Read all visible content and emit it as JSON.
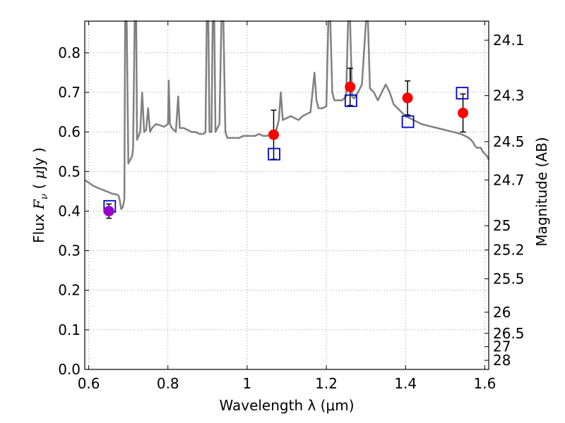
{
  "chart_data": {
    "type": "scatter",
    "xlabel": "Wavelength  λ (μm)",
    "ylabel": "Flux  Fν ( μJy )",
    "ylabel_right": "Magnitude (AB)",
    "xlim": [
      0.59,
      1.61
    ],
    "ylim": [
      0.0,
      0.88
    ],
    "grid": true,
    "x_ticks": [
      {
        "value": 0.6,
        "label": "0.6"
      },
      {
        "value": 0.8,
        "label": "0.8"
      },
      {
        "value": 1.0,
        "label": "1"
      },
      {
        "value": 1.2,
        "label": "1.2"
      },
      {
        "value": 1.4,
        "label": "1.4"
      },
      {
        "value": 1.6,
        "label": "1.6"
      }
    ],
    "y_ticks": [
      {
        "value": 0.0,
        "label": "0.0"
      },
      {
        "value": 0.1,
        "label": "0.1"
      },
      {
        "value": 0.2,
        "label": "0.2"
      },
      {
        "value": 0.3,
        "label": "0.3"
      },
      {
        "value": 0.4,
        "label": "0.4"
      },
      {
        "value": 0.5,
        "label": "0.5"
      },
      {
        "value": 0.6,
        "label": "0.6"
      },
      {
        "value": 0.7,
        "label": "0.7"
      },
      {
        "value": 0.8,
        "label": "0.8"
      }
    ],
    "right_ticks": [
      {
        "mag": 24.1,
        "label": "24.1"
      },
      {
        "mag": 24.3,
        "label": "24.3"
      },
      {
        "mag": 24.5,
        "label": "24.5"
      },
      {
        "mag": 24.7,
        "label": "24.7"
      },
      {
        "mag": 25.0,
        "label": "25"
      },
      {
        "mag": 25.2,
        "label": "25.2"
      },
      {
        "mag": 25.5,
        "label": "25.5"
      },
      {
        "mag": 26.0,
        "label": "26"
      },
      {
        "mag": 26.5,
        "label": "26.5"
      },
      {
        "mag": 27.0,
        "label": "27"
      },
      {
        "mag": 28.0,
        "label": "28"
      }
    ],
    "colors": {
      "model": "#808080",
      "observed": "#ff0000",
      "observed_purple": "#9900cc",
      "synthetic": "#0000cc",
      "errorbar": "#000000",
      "grid": "#999999"
    },
    "series": [
      {
        "name": "model spectrum",
        "kind": "line",
        "points": [
          [
            0.59,
            0.478
          ],
          [
            0.6,
            0.472
          ],
          [
            0.61,
            0.465
          ],
          [
            0.62,
            0.46
          ],
          [
            0.63,
            0.456
          ],
          [
            0.64,
            0.452
          ],
          [
            0.65,
            0.448
          ],
          [
            0.66,
            0.444
          ],
          [
            0.67,
            0.442
          ],
          [
            0.675,
            0.44
          ],
          [
            0.678,
            0.43
          ],
          [
            0.682,
            0.405
          ],
          [
            0.686,
            0.41
          ],
          [
            0.69,
            0.43
          ],
          [
            0.692,
            0.9
          ],
          [
            0.696,
            0.9
          ],
          [
            0.7,
            0.52
          ],
          [
            0.705,
            0.53
          ],
          [
            0.71,
            0.54
          ],
          [
            0.712,
            0.56
          ],
          [
            0.716,
            0.9
          ],
          [
            0.72,
            0.9
          ],
          [
            0.722,
            0.58
          ],
          [
            0.73,
            0.6
          ],
          [
            0.735,
            0.7
          ],
          [
            0.74,
            0.6
          ],
          [
            0.745,
            0.605
          ],
          [
            0.75,
            0.66
          ],
          [
            0.755,
            0.6
          ],
          [
            0.76,
            0.61
          ],
          [
            0.77,
            0.62
          ],
          [
            0.78,
            0.617
          ],
          [
            0.79,
            0.613
          ],
          [
            0.8,
            0.62
          ],
          [
            0.802,
            0.73
          ],
          [
            0.805,
            0.62
          ],
          [
            0.81,
            0.61
          ],
          [
            0.82,
            0.6
          ],
          [
            0.826,
            0.69
          ],
          [
            0.83,
            0.61
          ],
          [
            0.84,
            0.61
          ],
          [
            0.85,
            0.605
          ],
          [
            0.86,
            0.6
          ],
          [
            0.87,
            0.6
          ],
          [
            0.88,
            0.595
          ],
          [
            0.89,
            0.595
          ],
          [
            0.895,
            0.6
          ],
          [
            0.898,
            0.9
          ],
          [
            0.902,
            0.9
          ],
          [
            0.905,
            0.6
          ],
          [
            0.91,
            0.6
          ],
          [
            0.913,
            0.9
          ],
          [
            0.917,
            0.9
          ],
          [
            0.92,
            0.6
          ],
          [
            0.93,
            0.62
          ],
          [
            0.935,
            0.9
          ],
          [
            0.94,
            0.9
          ],
          [
            0.945,
            0.6
          ],
          [
            0.95,
            0.585
          ],
          [
            0.96,
            0.585
          ],
          [
            0.97,
            0.585
          ],
          [
            0.98,
            0.585
          ],
          [
            0.99,
            0.59
          ],
          [
            1.0,
            0.59
          ],
          [
            1.01,
            0.59
          ],
          [
            1.02,
            0.59
          ],
          [
            1.03,
            0.595
          ],
          [
            1.04,
            0.59
          ],
          [
            1.05,
            0.59
          ],
          [
            1.06,
            0.595
          ],
          [
            1.065,
            0.59
          ],
          [
            1.07,
            0.6
          ],
          [
            1.075,
            0.61
          ],
          [
            1.08,
            0.63
          ],
          [
            1.085,
            0.7
          ],
          [
            1.09,
            0.63
          ],
          [
            1.1,
            0.635
          ],
          [
            1.11,
            0.64
          ],
          [
            1.12,
            0.635
          ],
          [
            1.13,
            0.63
          ],
          [
            1.14,
            0.64
          ],
          [
            1.15,
            0.645
          ],
          [
            1.16,
            0.65
          ],
          [
            1.165,
            0.7
          ],
          [
            1.17,
            0.75
          ],
          [
            1.175,
            0.68
          ],
          [
            1.18,
            0.66
          ],
          [
            1.19,
            0.66
          ],
          [
            1.2,
            0.665
          ],
          [
            1.205,
            0.9
          ],
          [
            1.21,
            0.9
          ],
          [
            1.215,
            0.7
          ],
          [
            1.22,
            0.68
          ],
          [
            1.23,
            0.68
          ],
          [
            1.24,
            0.68
          ],
          [
            1.25,
            0.69
          ],
          [
            1.255,
            0.9
          ],
          [
            1.26,
            0.9
          ],
          [
            1.265,
            0.69
          ],
          [
            1.27,
            0.685
          ],
          [
            1.28,
            0.7
          ],
          [
            1.29,
            0.72
          ],
          [
            1.3,
            0.9
          ],
          [
            1.305,
            0.9
          ],
          [
            1.31,
            0.71
          ],
          [
            1.32,
            0.7
          ],
          [
            1.33,
            0.68
          ],
          [
            1.34,
            0.7
          ],
          [
            1.35,
            0.72
          ],
          [
            1.36,
            0.7
          ],
          [
            1.37,
            0.67
          ],
          [
            1.38,
            0.66
          ],
          [
            1.39,
            0.65
          ],
          [
            1.4,
            0.64
          ],
          [
            1.42,
            0.63
          ],
          [
            1.44,
            0.62
          ],
          [
            1.46,
            0.615
          ],
          [
            1.48,
            0.61
          ],
          [
            1.5,
            0.605
          ],
          [
            1.52,
            0.6
          ],
          [
            1.54,
            0.595
          ],
          [
            1.55,
            0.59
          ],
          [
            1.56,
            0.585
          ],
          [
            1.57,
            0.575
          ],
          [
            1.575,
            0.565
          ],
          [
            1.58,
            0.56
          ],
          [
            1.59,
            0.56
          ],
          [
            1.595,
            0.55
          ],
          [
            1.6,
            0.545
          ],
          [
            1.605,
            0.54
          ],
          [
            1.61,
            0.53
          ]
        ]
      },
      {
        "name": "observed photometry",
        "kind": "points-with-errors",
        "points": [
          {
            "x": 0.651,
            "y": 0.4,
            "err": 0.018,
            "color": "purple"
          },
          {
            "x": 1.067,
            "y": 0.593,
            "err": 0.062,
            "color": "red"
          },
          {
            "x": 1.26,
            "y": 0.714,
            "err": 0.047,
            "color": "red"
          },
          {
            "x": 1.405,
            "y": 0.686,
            "err": 0.043,
            "color": "red"
          },
          {
            "x": 1.545,
            "y": 0.648,
            "err": 0.048,
            "color": "red"
          }
        ]
      },
      {
        "name": "model synthetic photometry",
        "kind": "open-squares",
        "points": [
          {
            "x": 0.653,
            "y": 0.412
          },
          {
            "x": 1.068,
            "y": 0.544
          },
          {
            "x": 1.262,
            "y": 0.679
          },
          {
            "x": 1.406,
            "y": 0.626
          },
          {
            "x": 1.543,
            "y": 0.698
          }
        ]
      }
    ]
  }
}
